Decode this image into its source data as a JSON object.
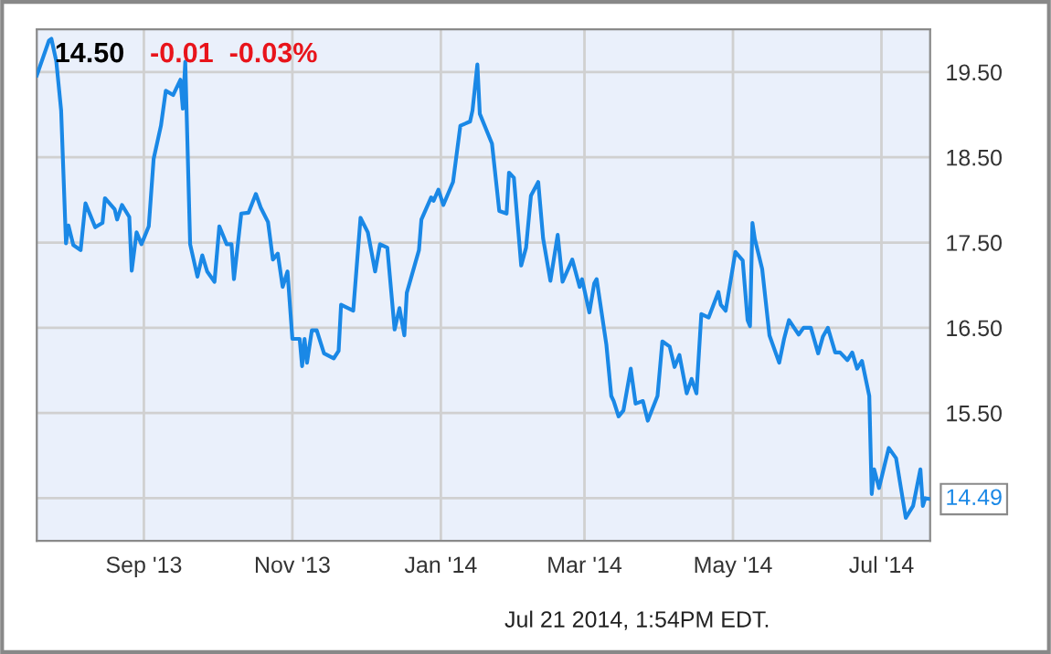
{
  "chart_data": {
    "type": "line",
    "title": "14.50",
    "subtitle": "-0.01  -0.03%",
    "annotations": [
      {
        "text": "14.49",
        "x": "2014-07-21",
        "y": 14.49
      },
      "Jul 21 2014, 1:54PM EDT."
    ],
    "x": [
      "2013-07-19",
      "2013-07-24",
      "2013-07-25",
      "2013-07-27",
      "2013-07-29",
      "2013-07-31",
      "2013-08-01",
      "2013-08-03",
      "2013-08-06",
      "2013-08-08",
      "2013-08-12",
      "2013-08-15",
      "2013-08-16",
      "2013-08-20",
      "2013-08-21",
      "2013-08-23",
      "2013-08-26",
      "2013-08-27",
      "2013-08-29",
      "2013-08-31",
      "2013-09-03",
      "2013-09-05",
      "2013-09-08",
      "2013-09-10",
      "2013-09-13",
      "2013-09-16",
      "2013-09-17",
      "2013-09-18",
      "2013-09-20",
      "2013-09-23",
      "2013-09-25",
      "2013-09-27",
      "2013-09-30",
      "2013-10-02",
      "2013-10-05",
      "2013-10-07",
      "2013-10-08",
      "2013-10-11",
      "2013-10-14",
      "2013-10-17",
      "2013-10-19",
      "2013-10-22",
      "2013-10-24",
      "2013-10-26",
      "2013-10-28",
      "2013-10-30",
      "2013-11-01",
      "2013-11-04",
      "2013-11-05",
      "2013-11-06",
      "2013-11-07",
      "2013-11-09",
      "2013-11-11",
      "2013-11-14",
      "2013-11-18",
      "2013-11-20",
      "2013-11-21",
      "2013-11-26",
      "2013-11-29",
      "2013-12-02",
      "2013-12-05",
      "2013-12-07",
      "2013-12-10",
      "2013-12-13",
      "2013-12-15",
      "2013-12-17",
      "2013-12-18",
      "2013-12-23",
      "2013-12-24",
      "2013-12-28",
      "2013-12-29",
      "2013-12-31",
      "2014-01-02",
      "2014-01-06",
      "2014-01-09",
      "2014-01-13",
      "2014-01-14",
      "2014-01-16",
      "2014-01-17",
      "2014-01-22",
      "2014-01-25",
      "2014-01-28",
      "2014-01-29",
      "2014-01-31",
      "2014-02-03",
      "2014-02-05",
      "2014-02-07",
      "2014-02-10",
      "2014-02-12",
      "2014-02-15",
      "2014-02-18",
      "2014-02-20",
      "2014-02-24",
      "2014-02-27",
      "2014-02-28",
      "2014-03-03",
      "2014-03-05",
      "2014-03-06",
      "2014-03-10",
      "2014-03-12",
      "2014-03-13",
      "2014-03-15",
      "2014-03-17",
      "2014-03-20",
      "2014-03-22",
      "2014-03-25",
      "2014-03-27",
      "2014-03-31",
      "2014-04-02",
      "2014-04-05",
      "2014-04-07",
      "2014-04-09",
      "2014-04-12",
      "2014-04-14",
      "2014-04-16",
      "2014-04-18",
      "2014-04-21",
      "2014-04-25",
      "2014-04-26",
      "2014-04-28",
      "2014-05-02",
      "2014-05-05",
      "2014-05-07",
      "2014-05-08",
      "2014-05-09",
      "2014-05-10",
      "2014-05-13",
      "2014-05-16",
      "2014-05-20",
      "2014-05-22",
      "2014-05-24",
      "2014-05-28",
      "2014-05-30",
      "2014-06-02",
      "2014-06-05",
      "2014-06-07",
      "2014-06-09",
      "2014-06-12",
      "2014-06-14",
      "2014-06-17",
      "2014-06-19",
      "2014-06-21",
      "2014-06-23",
      "2014-06-26",
      "2014-06-27",
      "2014-06-28",
      "2014-06-30",
      "2014-07-04",
      "2014-07-07",
      "2014-07-09",
      "2014-07-11",
      "2014-07-14",
      "2014-07-17",
      "2014-07-18",
      "2014-07-19",
      "2014-07-21"
    ],
    "series": [
      {
        "color": "#1a88e6",
        "values": [
          19.46,
          19.87,
          19.89,
          19.63,
          19.05,
          17.49,
          17.7,
          17.47,
          17.41,
          17.96,
          17.68,
          17.73,
          18.02,
          17.89,
          17.77,
          17.94,
          17.8,
          17.17,
          17.62,
          17.48,
          17.69,
          18.48,
          18.87,
          19.28,
          19.23,
          19.41,
          19.07,
          19.62,
          17.48,
          17.1,
          17.35,
          17.16,
          17.04,
          17.69,
          17.48,
          17.48,
          17.07,
          17.84,
          17.85,
          18.07,
          17.91,
          17.74,
          17.3,
          17.37,
          16.98,
          17.16,
          16.37,
          16.37,
          16.05,
          16.37,
          16.09,
          16.47,
          16.47,
          16.2,
          16.14,
          16.23,
          16.77,
          16.7,
          17.79,
          17.62,
          17.16,
          17.48,
          17.44,
          16.48,
          16.73,
          16.41,
          16.91,
          17.41,
          17.77,
          18.03,
          17.99,
          18.12,
          17.94,
          18.21,
          18.87,
          18.92,
          19.05,
          19.59,
          19.01,
          18.66,
          17.87,
          17.84,
          18.32,
          18.26,
          17.23,
          17.44,
          18.05,
          18.21,
          17.55,
          17.05,
          17.59,
          17.04,
          17.3,
          16.98,
          17.07,
          16.68,
          17.02,
          17.07,
          16.3,
          15.7,
          15.64,
          15.46,
          15.53,
          16.02,
          15.61,
          15.64,
          15.41,
          15.7,
          16.34,
          16.28,
          16.04,
          16.18,
          15.73,
          15.9,
          15.73,
          16.66,
          16.62,
          16.92,
          16.77,
          16.7,
          17.39,
          17.29,
          16.59,
          16.52,
          17.73,
          17.54,
          17.19,
          16.41,
          16.09,
          16.37,
          16.59,
          16.42,
          16.5,
          16.5,
          16.2,
          16.4,
          16.5,
          16.21,
          16.21,
          16.12,
          16.21,
          16.02,
          16.11,
          15.7,
          14.55,
          14.84,
          14.62,
          15.09,
          14.97,
          14.62,
          14.27,
          14.41,
          14.84,
          14.41,
          14.5,
          14.49
        ]
      }
    ],
    "xlim": [
      "2013-07-19",
      "2014-07-21"
    ],
    "xticks": [
      {
        "value": "2013-09-01",
        "label": "Sep '13"
      },
      {
        "value": "2013-11-01",
        "label": "Nov '13"
      },
      {
        "value": "2014-01-01",
        "label": "Jan '14"
      },
      {
        "value": "2014-03-01",
        "label": "Mar '14"
      },
      {
        "value": "2014-05-01",
        "label": "May '14"
      },
      {
        "value": "2014-07-01",
        "label": "Jul '14"
      }
    ],
    "ylim": [
      14.0,
      20.0
    ],
    "yticks": [
      {
        "value": 14.5,
        "label": null
      },
      {
        "value": 15.5,
        "label": "15.50"
      },
      {
        "value": 16.5,
        "label": "16.50"
      },
      {
        "value": 17.5,
        "label": "17.50"
      },
      {
        "value": 18.5,
        "label": "18.50"
      },
      {
        "value": 19.5,
        "label": "19.50"
      }
    ],
    "grid": true,
    "marker": "none",
    "line_style": "solid"
  }
}
